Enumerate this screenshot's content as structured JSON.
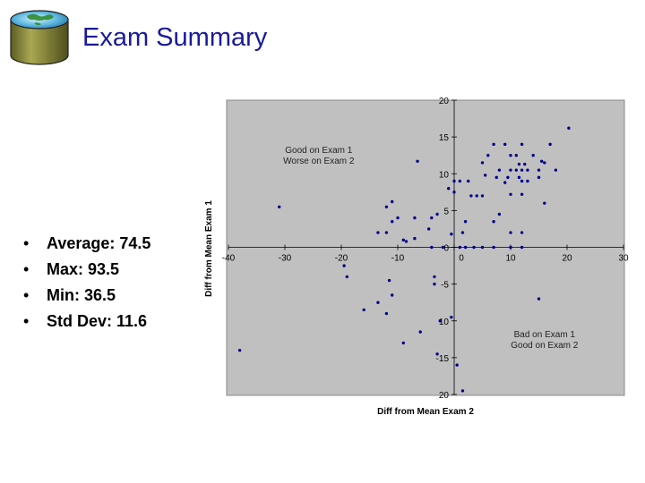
{
  "slide": {
    "title": "Exam Summary",
    "bullet_char": "•",
    "stats": [
      {
        "label": "Average: 74.5"
      },
      {
        "label": "Max: 93.5"
      },
      {
        "label": "Min: 36.5"
      },
      {
        "label": "Std Dev: 11.6"
      }
    ]
  },
  "colors": {
    "title": "#1a1a99",
    "plot_background": "#c0c0c0",
    "points": "#00008b",
    "logo_body": "#8a8a3a"
  },
  "icons": {
    "logo": "database-cylinder-icon"
  },
  "chart_data": {
    "type": "scatter",
    "xlabel": "Diff from Mean Exam 2",
    "ylabel": "Diff from Mean Exam 1",
    "xlim": [
      -40,
      30
    ],
    "ylim": [
      -20,
      20
    ],
    "xticks": [
      "-40",
      "-30",
      "-20",
      "-10",
      "0",
      "10",
      "20",
      "30"
    ],
    "yticks": [
      "20",
      "15",
      "10",
      "5",
      "0",
      "-5",
      "10",
      "-15",
      "20"
    ],
    "grid": false,
    "annotations": [
      {
        "lines": [
          "Good on Exam 1",
          "Worse on Exam 2"
        ],
        "x": -24,
        "y": 12.8
      },
      {
        "lines": [
          "Bad on Exam 1",
          "Good on Exam 2"
        ],
        "x": 16,
        "y": -12.2
      }
    ],
    "points": [
      [
        20.3,
        16.2
      ],
      [
        7,
        14
      ],
      [
        9,
        14
      ],
      [
        12,
        14
      ],
      [
        17,
        14
      ],
      [
        6,
        12.5
      ],
      [
        10,
        12.5
      ],
      [
        11,
        12.5
      ],
      [
        14,
        12.5
      ],
      [
        -6.5,
        11.7
      ],
      [
        5,
        11.5
      ],
      [
        11.5,
        11.3
      ],
      [
        12.5,
        11.3
      ],
      [
        15.5,
        11.7
      ],
      [
        16,
        11.5
      ],
      [
        8,
        10.5
      ],
      [
        10,
        10.5
      ],
      [
        11,
        10.5
      ],
      [
        12,
        10.5
      ],
      [
        13,
        10.5
      ],
      [
        15,
        10.5
      ],
      [
        18,
        10.5
      ],
      [
        5.5,
        9.8
      ],
      [
        7.5,
        9.5
      ],
      [
        9.5,
        9.5
      ],
      [
        11.5,
        9.5
      ],
      [
        15,
        9.5
      ],
      [
        0,
        9
      ],
      [
        1,
        9
      ],
      [
        2.5,
        9
      ],
      [
        9,
        8.8
      ],
      [
        12,
        9
      ],
      [
        13,
        9
      ],
      [
        -1,
        8
      ],
      [
        0,
        7.5
      ],
      [
        3,
        7
      ],
      [
        4,
        7
      ],
      [
        5,
        7
      ],
      [
        10,
        7.2
      ],
      [
        12,
        7.2
      ],
      [
        -11,
        6.2
      ],
      [
        16,
        6
      ],
      [
        -31,
        5.5
      ],
      [
        -12,
        5.5
      ],
      [
        -3,
        4.5
      ],
      [
        8,
        4.5
      ],
      [
        -10,
        4
      ],
      [
        -7,
        4
      ],
      [
        -4,
        4
      ],
      [
        -11,
        3.5
      ],
      [
        2,
        3.5
      ],
      [
        7,
        3.5
      ],
      [
        -4.5,
        2.5
      ],
      [
        -12,
        2
      ],
      [
        -13.5,
        2
      ],
      [
        -0.5,
        1.8
      ],
      [
        1.5,
        2
      ],
      [
        10,
        2
      ],
      [
        12,
        2
      ],
      [
        -7,
        1.2
      ],
      [
        -9,
        1
      ],
      [
        -8.5,
        0.8
      ],
      [
        -4,
        0
      ],
      [
        -2,
        0
      ],
      [
        1,
        0
      ],
      [
        2,
        0
      ],
      [
        3.5,
        0
      ],
      [
        5,
        0
      ],
      [
        7,
        0
      ],
      [
        10,
        0
      ],
      [
        12,
        0
      ],
      [
        -19.5,
        -2.5
      ],
      [
        -19,
        -4
      ],
      [
        -11.5,
        -4.5
      ],
      [
        -3.5,
        -4
      ],
      [
        -3.5,
        -5
      ],
      [
        -11,
        -6.5
      ],
      [
        15,
        -7
      ],
      [
        -13.5,
        -7.5
      ],
      [
        -16,
        -8.5
      ],
      [
        -12,
        -9
      ],
      [
        -2.5,
        -10
      ],
      [
        -0.5,
        -9.5
      ],
      [
        -6,
        -11.5
      ],
      [
        -9,
        -13
      ],
      [
        -38,
        -14
      ],
      [
        -3,
        -14.5
      ],
      [
        0.5,
        -16
      ],
      [
        1.5,
        -19.5
      ]
    ]
  }
}
